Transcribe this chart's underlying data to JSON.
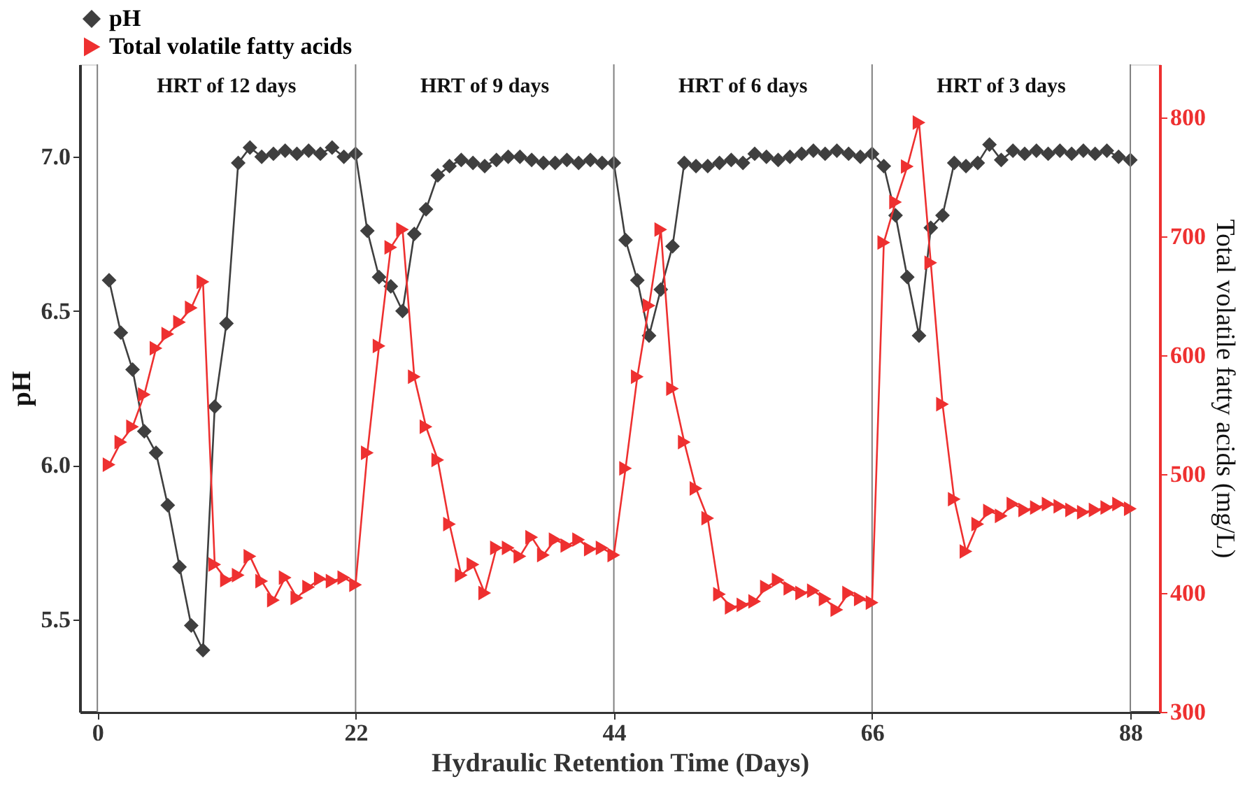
{
  "chart_data": {
    "type": "line",
    "xlabel": "Hydraulic Retention Time (Days)",
    "ylabel": "pH",
    "y2label": "Total volatile fatty acids (mg/L)",
    "x": [
      1,
      2,
      3,
      4,
      5,
      6,
      7,
      8,
      9,
      10,
      11,
      12,
      13,
      14,
      15,
      16,
      17,
      18,
      19,
      20,
      21,
      22,
      23,
      24,
      25,
      26,
      27,
      28,
      29,
      30,
      31,
      32,
      33,
      34,
      35,
      36,
      37,
      38,
      39,
      40,
      41,
      42,
      43,
      44,
      45,
      46,
      47,
      48,
      49,
      50,
      51,
      52,
      53,
      54,
      55,
      56,
      57,
      58,
      59,
      60,
      61,
      62,
      63,
      64,
      65,
      66,
      67,
      68,
      69,
      70,
      71,
      72,
      73,
      74,
      75,
      76,
      77,
      78,
      79,
      80,
      81,
      82,
      83,
      84,
      85,
      86,
      87,
      88
    ],
    "series": [
      {
        "name": "pH",
        "color": "#3f3f3f",
        "marker": "diamond",
        "axis": "y",
        "values": [
          6.6,
          6.43,
          6.31,
          6.11,
          6.04,
          5.87,
          5.67,
          5.48,
          5.4,
          6.19,
          6.46,
          6.98,
          7.03,
          7.0,
          7.01,
          7.02,
          7.01,
          7.02,
          7.01,
          7.03,
          7.0,
          7.01,
          6.76,
          6.61,
          6.58,
          6.5,
          6.75,
          6.83,
          6.94,
          6.97,
          6.99,
          6.98,
          6.97,
          6.99,
          7.0,
          7.0,
          6.99,
          6.98,
          6.98,
          6.99,
          6.98,
          6.99,
          6.98,
          6.98,
          6.73,
          6.6,
          6.42,
          6.57,
          6.71,
          6.98,
          6.97,
          6.97,
          6.98,
          6.99,
          6.98,
          7.01,
          7.0,
          6.99,
          7.0,
          7.01,
          7.02,
          7.01,
          7.02,
          7.01,
          7.0,
          7.01,
          6.97,
          6.81,
          6.61,
          6.42,
          6.77,
          6.81,
          6.98,
          6.97,
          6.98,
          7.04,
          6.99,
          7.02,
          7.01,
          7.02,
          7.01,
          7.02,
          7.01,
          7.02,
          7.01,
          7.02,
          7.0,
          6.99
        ]
      },
      {
        "name": "Total volatile fatty acids",
        "color": "#ee3030",
        "marker": "triangle",
        "axis": "y2",
        "values": [
          508,
          527,
          540,
          567,
          606,
          618,
          628,
          640,
          662,
          424,
          411,
          415,
          431,
          410,
          394,
          413,
          396,
          405,
          412,
          410,
          413,
          407,
          518,
          608,
          691,
          706,
          582,
          540,
          512,
          458,
          415,
          424,
          400,
          438,
          438,
          431,
          447,
          432,
          445,
          440,
          445,
          437,
          438,
          432,
          505,
          582,
          642,
          706,
          572,
          527,
          488,
          463,
          399,
          388,
          390,
          393,
          405,
          411,
          404,
          400,
          402,
          395,
          386,
          400,
          395,
          392,
          695,
          729,
          759,
          796,
          678,
          559,
          479,
          435,
          458,
          469,
          465,
          475,
          470,
          472,
          475,
          473,
          470,
          468,
          470,
          472,
          475,
          471
        ]
      }
    ],
    "xlim": [
      -1.5,
      90.5
    ],
    "xticks": [
      0,
      22,
      44,
      66,
      88
    ],
    "ylim": [
      5.2,
      7.3
    ],
    "yticks": [
      {
        "value": 5.5,
        "label": "5.5"
      },
      {
        "value": 6.0,
        "label": "6.0"
      },
      {
        "value": 6.5,
        "label": "6.5"
      },
      {
        "value": 7.0,
        "label": "7.0"
      }
    ],
    "y2lim": [
      300,
      845
    ],
    "y2ticks": [
      300,
      400,
      500,
      600,
      700,
      800
    ],
    "ref_lines": [
      {
        "axis": "x",
        "value": 0,
        "color": "#808080"
      },
      {
        "axis": "x",
        "value": 22,
        "color": "#808080"
      },
      {
        "axis": "x",
        "value": 44,
        "color": "#808080"
      },
      {
        "axis": "x",
        "value": 66,
        "color": "#808080"
      },
      {
        "axis": "x",
        "value": 88,
        "color": "#808080"
      }
    ],
    "bands": [
      {
        "axis": "x",
        "from": 0,
        "to": 22,
        "label": "HRT of 12 days",
        "color": "#ffffff"
      },
      {
        "axis": "x",
        "from": 22,
        "to": 44,
        "label": "HRT of 9 days",
        "color": "#ffffff"
      },
      {
        "axis": "x",
        "from": 44,
        "to": 66,
        "label": "HRT of 6 days",
        "color": "#ffffff"
      },
      {
        "axis": "x",
        "from": 66,
        "to": 88,
        "label": "HRT of 3 days",
        "color": "#ffffff"
      }
    ],
    "legend": "top",
    "grid": false
  }
}
